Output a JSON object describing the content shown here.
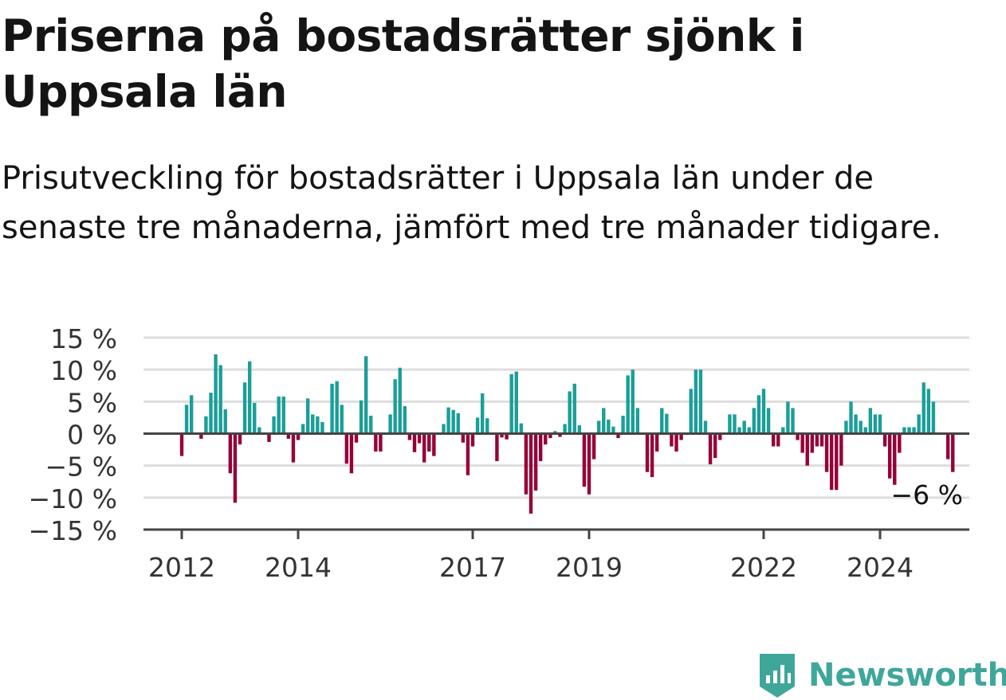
{
  "title": "Priserna på bostadsrätter sjönk i Uppsala län",
  "subtitle": "Prisutveckling för bostadsrätter i Uppsala län under de senaste tre månaderna, jämfört med tre månader tidigare.",
  "colors": {
    "positive": "#1b9e98",
    "negative": "#960038",
    "grid": "#dddddd",
    "axis": "#444444"
  },
  "logo": {
    "text": "Newsworthy",
    "icon": "newsworthy-chart-icon"
  },
  "chart_data": {
    "type": "bar",
    "unit": "%",
    "x_start": "2012-01",
    "x_step": "month",
    "ylim": [
      -15,
      15
    ],
    "yticks": [
      15,
      10,
      5,
      0,
      -5,
      -10,
      -15
    ],
    "ytick_labels": [
      "15 %",
      "10 %",
      "5 %",
      "0 %",
      "−5 %",
      "−10 %",
      "−15 %"
    ],
    "xticks": [
      "2012",
      "2014",
      "2017",
      "2019",
      "2022",
      "2024"
    ],
    "grid": true,
    "last_value_label": "−6 %",
    "values": [
      -3.5,
      4.5,
      6,
      0,
      -0.8,
      2.7,
      6.4,
      12.4,
      10.7,
      3.8,
      -6.2,
      -10.8,
      -1.7,
      8,
      11.3,
      4.8,
      1,
      0,
      -1.3,
      2.7,
      5.8,
      5.8,
      -0.8,
      -4.5,
      -1,
      1.5,
      5.5,
      3,
      2.7,
      1.8,
      0,
      7.8,
      8.2,
      4.5,
      -4.7,
      -6.2,
      -1.4,
      5.2,
      12.1,
      2.8,
      -2.8,
      -2.8,
      0,
      3,
      8.5,
      10.3,
      4.3,
      -1,
      -2.9,
      -1.5,
      -4.5,
      -2.8,
      -3.5,
      0,
      1.5,
      4.1,
      3.7,
      3.2,
      -1.4,
      -6.5,
      -2,
      2.5,
      6.3,
      2.4,
      0,
      -4.3,
      -0.6,
      -0.9,
      9.3,
      9.7,
      1.6,
      -9.5,
      -12.5,
      -8.9,
      -4.3,
      -1.7,
      -0.7,
      0.4,
      -0.5,
      1.5,
      6.6,
      7.8,
      1.3,
      -8.3,
      -9.5,
      -4,
      2,
      4,
      2.2,
      1.1,
      -0.7,
      2.8,
      9.1,
      10,
      4,
      0,
      -6,
      -6.8,
      -2.8,
      4,
      3.1,
      -2,
      -2.8,
      -1,
      0,
      7,
      10,
      10,
      2,
      -4.8,
      -3.8,
      -1,
      0,
      3,
      3,
      1,
      2,
      1,
      4,
      6,
      7,
      4,
      -2,
      -2,
      1,
      5,
      4,
      -1,
      -3,
      -5,
      -3,
      -2,
      -2,
      -6,
      -8.8,
      -8.8,
      -5,
      2,
      5,
      3,
      2,
      1,
      4,
      3,
      3,
      -2,
      -7,
      -8,
      -3,
      1,
      1,
      1,
      3,
      8,
      7,
      5,
      0,
      0,
      -4,
      -6
    ]
  }
}
